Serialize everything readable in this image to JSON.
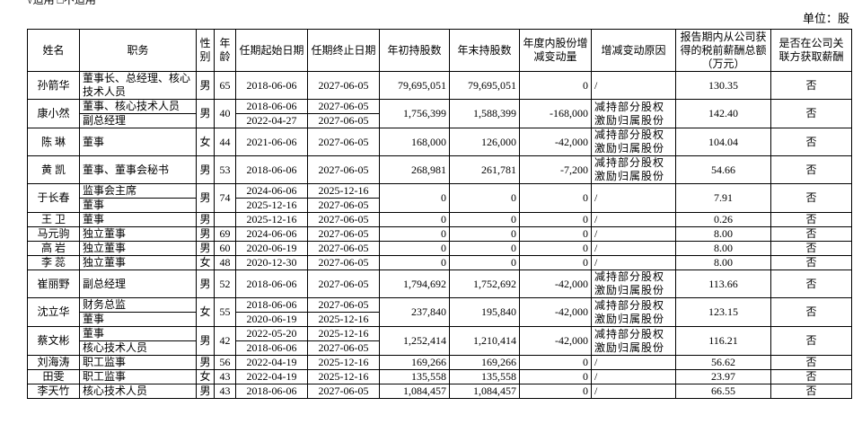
{
  "top_note": "√适用 □不适用",
  "unit": "单位：股",
  "table": {
    "header": [
      "姓名",
      "职务",
      "性别",
      "年龄",
      "任期起始日期",
      "任期终止日期",
      "年初持股数",
      "年末持股数",
      "年度内股份增减变动量",
      "增减变动原因",
      "报告期内从公司获得的税前薪酬总额（万元）",
      "是否在公司关联方获取薪酬"
    ],
    "rows": [
      {
        "name": "孙箭华",
        "roles": [
          "董事长、总经理、核心技术人员"
        ],
        "gender": "男",
        "age": "65",
        "starts": [
          "2018-06-06"
        ],
        "ends": [
          "2027-06-05"
        ],
        "begin": "79,695,051",
        "finish": "79,695,051",
        "change": "0",
        "reason": "/",
        "pay": "130.35",
        "related": "否"
      },
      {
        "name": "康小然",
        "roles": [
          "董事、核心技术人员",
          "副总经理"
        ],
        "gender": "男",
        "age": "40",
        "starts": [
          "2018-06-06",
          "2022-04-27"
        ],
        "ends": [
          "2027-06-05",
          "2027-06-05"
        ],
        "begin": "1,756,399",
        "finish": "1,588,399",
        "change": "-168,000",
        "reason": "减持部分股权激励归属股份",
        "pay": "142.40",
        "related": "否"
      },
      {
        "name": "陈 琳",
        "roles": [
          "董事"
        ],
        "gender": "女",
        "age": "44",
        "starts": [
          "2021-06-06"
        ],
        "ends": [
          "2027-06-05"
        ],
        "begin": "168,000",
        "finish": "126,000",
        "change": "-42,000",
        "reason": "减持部分股权激励归属股份",
        "pay": "104.04",
        "related": "否"
      },
      {
        "name": "黄 凯",
        "roles": [
          "董事、董事会秘书"
        ],
        "gender": "男",
        "age": "53",
        "starts": [
          "2018-06-06"
        ],
        "ends": [
          "2027-06-05"
        ],
        "begin": "268,981",
        "finish": "261,781",
        "change": "-7,200",
        "reason": "减持部分股权激励归属股份",
        "pay": "54.66",
        "related": "否"
      },
      {
        "name": "于长春",
        "roles": [
          "监事会主席",
          "董事"
        ],
        "gender": "男",
        "age": "74",
        "starts": [
          "2024-06-06",
          "2025-12-16"
        ],
        "ends": [
          "2025-12-16",
          "2027-06-05"
        ],
        "begin": "0",
        "finish": "0",
        "change": "0",
        "reason": "/",
        "pay": "7.91",
        "related": "否"
      },
      {
        "name": "王 卫",
        "roles": [
          "董事"
        ],
        "gender": "男",
        "age": null,
        "starts": [
          "2025-12-16"
        ],
        "ends": [
          "2027-06-05"
        ],
        "begin": "0",
        "finish": "0",
        "change": "0",
        "reason": "/",
        "pay": "0.26",
        "related": "否"
      },
      {
        "name": "马元驹",
        "roles": [
          "独立董事"
        ],
        "gender": "男",
        "age": "69",
        "starts": [
          "2024-06-06"
        ],
        "ends": [
          "2027-06-05"
        ],
        "begin": "0",
        "finish": "0",
        "change": "0",
        "reason": "/",
        "pay": "8.00",
        "related": "否"
      },
      {
        "name": "高 岩",
        "roles": [
          "独立董事"
        ],
        "gender": "男",
        "age": "60",
        "starts": [
          "2020-06-19"
        ],
        "ends": [
          "2027-06-05"
        ],
        "begin": "0",
        "finish": "0",
        "change": "0",
        "reason": "/",
        "pay": "8.00",
        "related": "否"
      },
      {
        "name": "李 蕊",
        "roles": [
          "独立董事"
        ],
        "gender": "女",
        "age": "48",
        "starts": [
          "2020-12-30"
        ],
        "ends": [
          "2027-06-05"
        ],
        "begin": "0",
        "finish": "0",
        "change": "0",
        "reason": "/",
        "pay": "8.00",
        "related": "否"
      },
      {
        "name": "崔丽野",
        "roles": [
          "副总经理"
        ],
        "gender": "男",
        "age": "52",
        "starts": [
          "2018-06-06"
        ],
        "ends": [
          "2027-06-05"
        ],
        "begin": "1,794,692",
        "finish": "1,752,692",
        "change": "-42,000",
        "reason": "减持部分股权激励归属股份",
        "pay": "113.66",
        "related": "否"
      },
      {
        "name": "沈立华",
        "roles": [
          "财务总监",
          "董事"
        ],
        "gender": "女",
        "age": "55",
        "starts": [
          "2018-06-06",
          "2020-06-19"
        ],
        "ends": [
          "2027-06-05",
          "2025-12-16"
        ],
        "begin": "237,840",
        "finish": "195,840",
        "change": "-42,000",
        "reason": "减持部分股权激励归属股份",
        "pay": "123.15",
        "related": "否"
      },
      {
        "name": "蔡文彬",
        "roles": [
          "董事",
          "核心技术人员"
        ],
        "gender": "男",
        "age": "42",
        "starts": [
          "2022-05-20",
          "2018-06-06"
        ],
        "ends": [
          "2025-12-16",
          "2027-06-05"
        ],
        "begin": "1,252,414",
        "finish": "1,210,414",
        "change": "-42,000",
        "reason": "减持部分股权激励归属股份",
        "pay": "116.21",
        "related": "否"
      },
      {
        "name": "刘海涛",
        "roles": [
          "职工监事"
        ],
        "gender": "男",
        "age": "56",
        "starts": [
          "2022-04-19"
        ],
        "ends": [
          "2025-12-16"
        ],
        "begin": "169,266",
        "finish": "169,266",
        "change": "0",
        "reason": "/",
        "pay": "56.62",
        "related": "否"
      },
      {
        "name": "田雯",
        "roles": [
          "职工监事"
        ],
        "gender": "女",
        "age": "43",
        "starts": [
          "2022-04-19"
        ],
        "ends": [
          "2025-12-16"
        ],
        "begin": "135,558",
        "finish": "135,558",
        "change": "0",
        "reason": "/",
        "pay": "23.97",
        "related": "否"
      },
      {
        "name": "李天竹",
        "roles": [
          "核心技术人员"
        ],
        "gender": "男",
        "age": "43",
        "starts": [
          "2018-06-06"
        ],
        "ends": [
          "2027-06-05"
        ],
        "begin": "1,084,457",
        "finish": "1,084,457",
        "change": "0",
        "reason": "/",
        "pay": "66.55",
        "related": "否"
      }
    ]
  }
}
